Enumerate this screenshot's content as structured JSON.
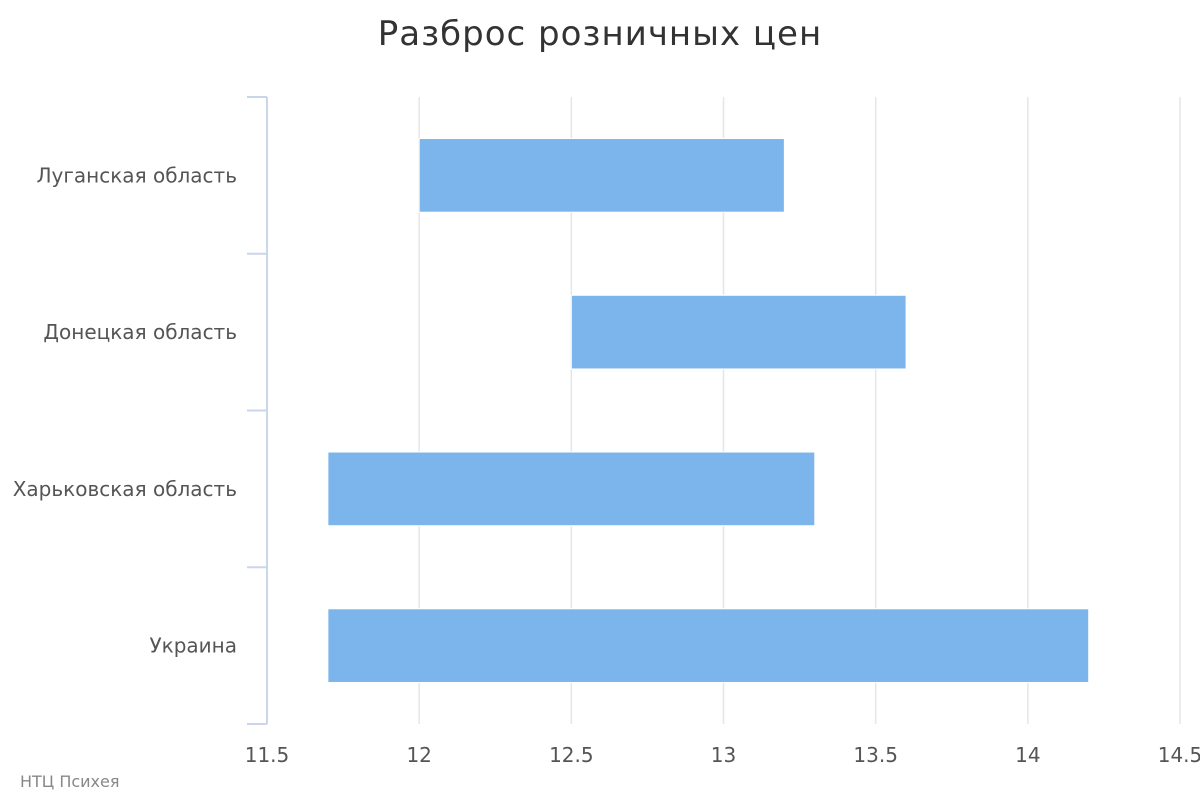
{
  "chart_data": {
    "type": "bar",
    "orientation": "horizontal",
    "variant": "range",
    "title": "Разброс розничных цен",
    "categories": [
      "Луганская область",
      "Донецкая область",
      "Харьковская область",
      "Украина"
    ],
    "ranges": [
      {
        "low": 12.0,
        "high": 13.2
      },
      {
        "low": 12.5,
        "high": 13.6
      },
      {
        "low": 11.7,
        "high": 13.3
      },
      {
        "low": 11.7,
        "high": 14.2
      }
    ],
    "xlim": [
      11.5,
      14.5
    ],
    "xticks": [
      "11.5",
      "12",
      "12.5",
      "13",
      "13.5",
      "14",
      "14.5"
    ],
    "grid": true,
    "bar_color": "#7cb5ec",
    "grid_color": "#e6e6e6",
    "axis_color": "#ccd6eb"
  },
  "credits": "НТЦ Психея"
}
